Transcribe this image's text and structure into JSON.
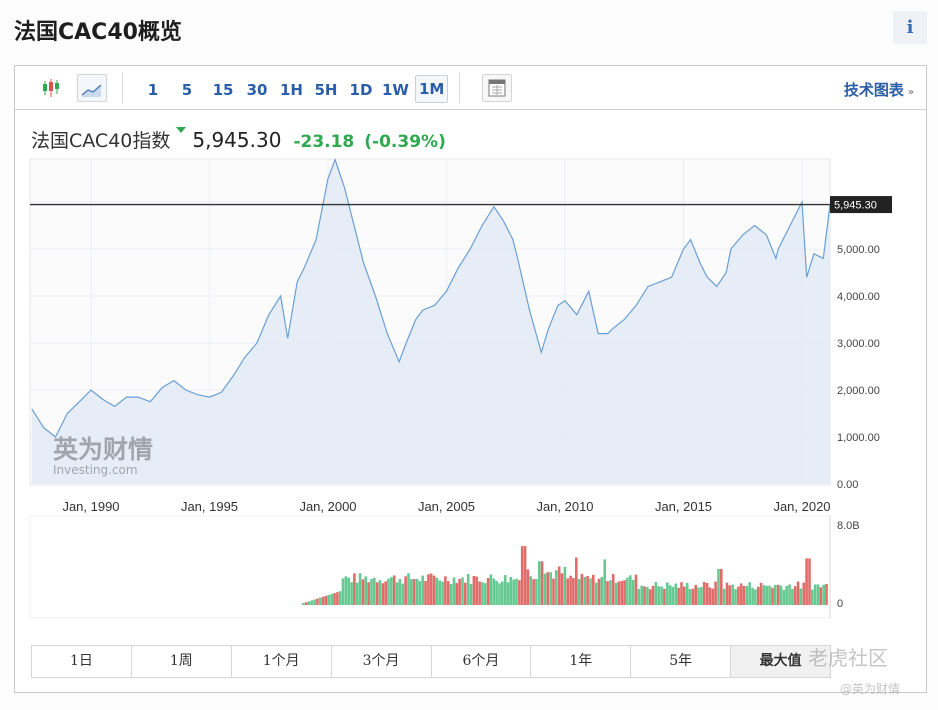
{
  "header": {
    "title": "法国CAC40概览",
    "info_label": "i"
  },
  "toolbar": {
    "chart_types": [
      {
        "name": "candlestick-chart",
        "icon": "candlestick-icon",
        "active": false
      },
      {
        "name": "area-chart",
        "icon": "area-chart-icon",
        "active": true
      }
    ],
    "intervals": [
      "1",
      "5",
      "15",
      "30",
      "1H",
      "5H",
      "1D",
      "1W",
      "1M"
    ],
    "active_interval": "1M",
    "table_icon": "table-view-icon",
    "tech_chart_label": "技术图表",
    "tech_chart_arrow": "»"
  },
  "quote": {
    "name": "法国CAC40指数",
    "direction": "down",
    "price": "5,945.30",
    "change": "-23.18",
    "change_pct": "(-0.39%)",
    "color": "#2fa84f"
  },
  "range_tabs": {
    "items": [
      "1日",
      "1周",
      "1个月",
      "3个月",
      "6个月",
      "1年",
      "5年",
      "最大值"
    ],
    "active": "最大值"
  },
  "watermarks": {
    "chart_logo_cn": "英为财情",
    "chart_logo_en": "Investing.com",
    "corner_text": "老虎社区",
    "weibo_handle": "@英为财情"
  },
  "chart_data": [
    {
      "type": "area",
      "title": "法国CAC40指数",
      "series": [
        {
          "name": "CAC 40",
          "color": "#6a9fd4"
        }
      ],
      "x": [
        1987.5,
        1988,
        1988.5,
        1989,
        1989.5,
        1990,
        1990.5,
        1991,
        1991.5,
        1992,
        1992.5,
        1993,
        1993.5,
        1994,
        1994.5,
        1995,
        1995.5,
        1996,
        1996.5,
        1997,
        1997.5,
        1998,
        1998.3,
        1998.7,
        1999,
        1999.5,
        2000,
        2000.3,
        2000.7,
        2001,
        2001.5,
        2002,
        2002.5,
        2003,
        2003.3,
        2003.7,
        2004,
        2004.5,
        2005,
        2005.5,
        2006,
        2006.5,
        2007,
        2007.4,
        2007.8,
        2008,
        2008.5,
        2009,
        2009.3,
        2009.7,
        2010,
        2010.5,
        2011,
        2011.4,
        2011.8,
        2012,
        2012.5,
        2013,
        2013.5,
        2014,
        2014.5,
        2015,
        2015.3,
        2015.7,
        2016,
        2016.4,
        2016.8,
        2017,
        2017.5,
        2018,
        2018.5,
        2018.9,
        2019,
        2019.5,
        2020,
        2020.2,
        2020.5,
        2020.9,
        2021.2
      ],
      "values": [
        1600,
        1200,
        1000,
        1500,
        1750,
        2000,
        1800,
        1650,
        1850,
        1850,
        1750,
        2050,
        2200,
        2000,
        1900,
        1850,
        1950,
        2300,
        2700,
        3000,
        3600,
        4000,
        3100,
        4300,
        4600,
        5200,
        6500,
        6900,
        6300,
        5700,
        4700,
        4000,
        3200,
        2600,
        3000,
        3500,
        3700,
        3800,
        4100,
        4600,
        5000,
        5500,
        5900,
        5600,
        5200,
        4800,
        3700,
        2800,
        3300,
        3800,
        3900,
        3600,
        4100,
        3200,
        3200,
        3300,
        3500,
        3800,
        4200,
        4300,
        4400,
        5000,
        5200,
        4700,
        4400,
        4200,
        4500,
        5000,
        5300,
        5500,
        5300,
        4800,
        5000,
        5500,
        6000,
        4400,
        4900,
        4800,
        5945.3
      ],
      "current_value": 5945.3,
      "current_value_label": "5,945.30",
      "x_tick_labels": [
        "Jan, 1990",
        "Jan, 1995",
        "Jan, 2000",
        "Jan, 2005",
        "Jan, 2010",
        "Jan, 2015",
        "Jan, 2020"
      ],
      "y_tick_labels": [
        "0.00",
        "1,000.00",
        "2,000.00",
        "3,000.00",
        "4,000.00",
        "5,000.00"
      ],
      "ylim": [
        0,
        6900
      ],
      "grid": true,
      "legend": "none"
    },
    {
      "type": "bar",
      "title": "Volume",
      "y_tick_labels": [
        "0",
        "8.0B"
      ],
      "ylim": [
        0,
        8.0
      ],
      "unit": "B",
      "up_color": "#4cbf7f",
      "down_color": "#d9534f",
      "note": "monthly volume bars start ~1999; peaks ~2008 and ~2020"
    }
  ]
}
